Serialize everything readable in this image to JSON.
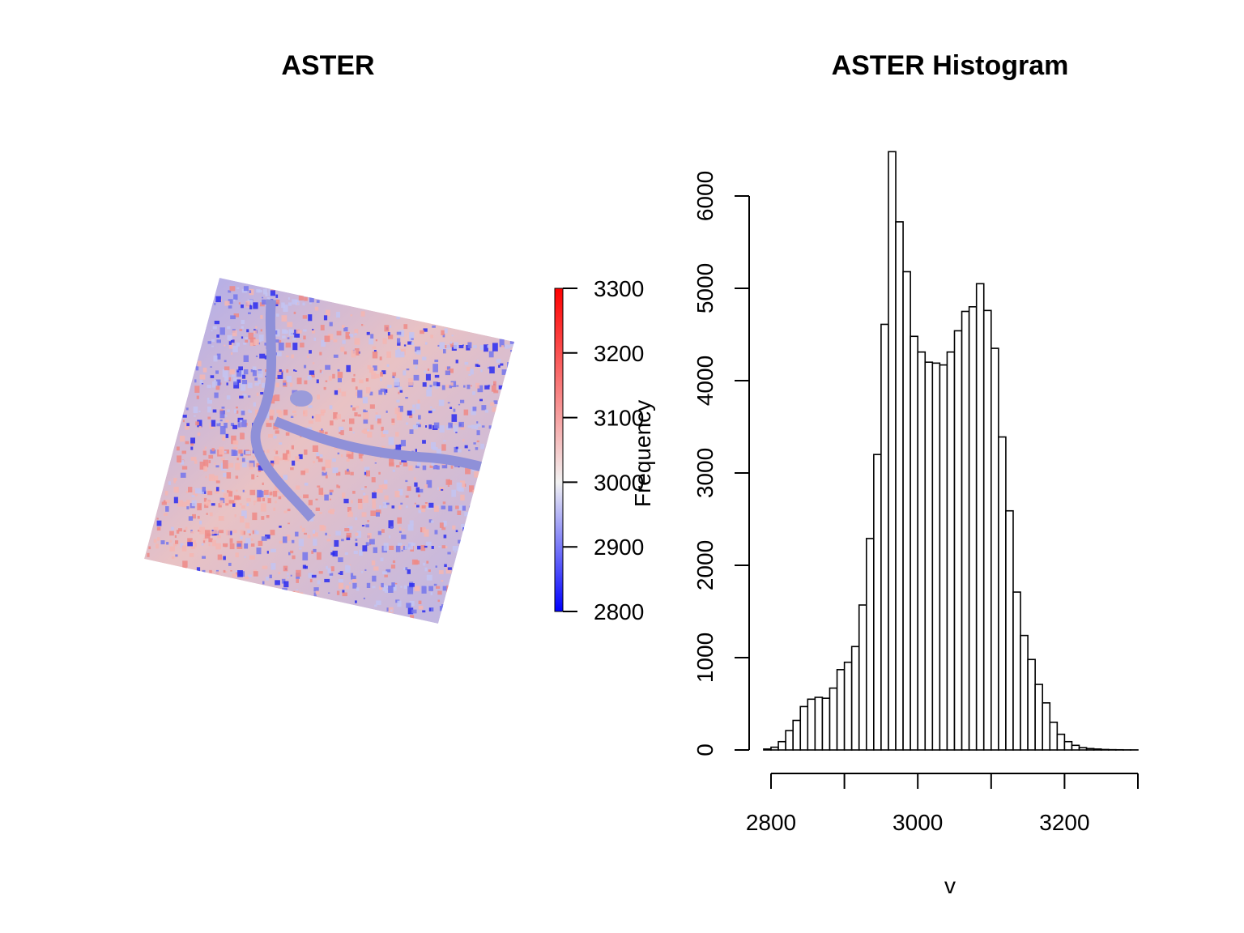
{
  "chart_data": [
    {
      "type": "heatmap",
      "title": "ASTER",
      "colorbar": {
        "range": [
          2800,
          3300
        ],
        "ticks": [
          3300,
          3200,
          3100,
          3000,
          2900,
          2800
        ],
        "colors": {
          "low": "#0000ff",
          "mid": "#f2f2f2",
          "high": "#ff0000"
        }
      }
    },
    {
      "type": "bar",
      "title": "ASTER Histogram",
      "xlabel": "v",
      "ylabel": "Frequency",
      "xlim": [
        2800,
        3300
      ],
      "ylim": [
        0,
        6000
      ],
      "x_ticks": [
        2800,
        2900,
        3000,
        3100,
        3200,
        3300
      ],
      "x_tick_labels": [
        "2800",
        "3000",
        "3200"
      ],
      "y_ticks": [
        0,
        1000,
        2000,
        3000,
        4000,
        5000,
        6000
      ],
      "bin_width": 10,
      "bin_starts": [
        2790,
        2800,
        2810,
        2820,
        2830,
        2840,
        2850,
        2860,
        2870,
        2880,
        2890,
        2900,
        2910,
        2920,
        2930,
        2940,
        2950,
        2960,
        2970,
        2980,
        2990,
        3000,
        3010,
        3020,
        3030,
        3040,
        3050,
        3060,
        3070,
        3080,
        3090,
        3100,
        3110,
        3120,
        3130,
        3140,
        3150,
        3160,
        3170,
        3180,
        3190,
        3200,
        3210,
        3220,
        3230,
        3240,
        3250,
        3260,
        3270,
        3280,
        3290
      ],
      "values": [
        10,
        30,
        90,
        210,
        320,
        470,
        550,
        570,
        560,
        670,
        870,
        950,
        1120,
        1570,
        2290,
        3200,
        4610,
        6480,
        5720,
        5180,
        4480,
        4310,
        4200,
        4190,
        4170,
        4310,
        4540,
        4750,
        4800,
        5050,
        4760,
        4350,
        3390,
        2590,
        1710,
        1240,
        980,
        710,
        510,
        300,
        170,
        90,
        50,
        25,
        15,
        10,
        5,
        3,
        2,
        1,
        1
      ]
    }
  ]
}
